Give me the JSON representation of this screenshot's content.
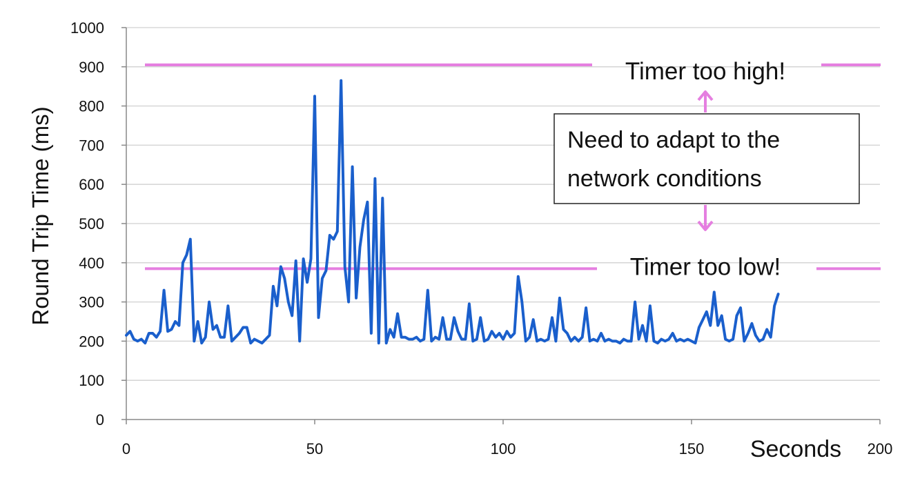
{
  "colors": {
    "series": "#1a5fcc",
    "threshold": "#e57fe0",
    "grid": "#d0d0d0",
    "axis": "#888888"
  },
  "chart_data": {
    "type": "line",
    "title": "",
    "xlabel": "Seconds",
    "ylabel": "Round Trip Time (ms)",
    "xlim": [
      0,
      200
    ],
    "ylim": [
      0,
      1000
    ],
    "x_ticks": [
      0,
      50,
      100,
      150,
      200
    ],
    "y_ticks": [
      0,
      100,
      200,
      300,
      400,
      500,
      600,
      700,
      800,
      900,
      1000
    ],
    "grid": "horizontal",
    "series": [
      {
        "values": [
          [
            0,
            215
          ],
          [
            1,
            225
          ],
          [
            2,
            205
          ],
          [
            3,
            200
          ],
          [
            4,
            205
          ],
          [
            5,
            195
          ],
          [
            6,
            220
          ],
          [
            7,
            220
          ],
          [
            8,
            210
          ],
          [
            9,
            225
          ],
          [
            10,
            330
          ],
          [
            11,
            225
          ],
          [
            12,
            230
          ],
          [
            13,
            250
          ],
          [
            14,
            240
          ],
          [
            15,
            400
          ],
          [
            16,
            420
          ],
          [
            17,
            460
          ],
          [
            18,
            200
          ],
          [
            19,
            250
          ],
          [
            20,
            195
          ],
          [
            21,
            210
          ],
          [
            22,
            300
          ],
          [
            23,
            230
          ],
          [
            24,
            240
          ],
          [
            25,
            210
          ],
          [
            26,
            210
          ],
          [
            27,
            290
          ],
          [
            28,
            200
          ],
          [
            29,
            210
          ],
          [
            30,
            220
          ],
          [
            31,
            235
          ],
          [
            32,
            235
          ],
          [
            33,
            195
          ],
          [
            34,
            205
          ],
          [
            35,
            200
          ],
          [
            36,
            195
          ],
          [
            37,
            205
          ],
          [
            38,
            215
          ],
          [
            39,
            340
          ],
          [
            40,
            290
          ],
          [
            41,
            390
          ],
          [
            42,
            360
          ],
          [
            43,
            300
          ],
          [
            44,
            265
          ],
          [
            45,
            405
          ],
          [
            46,
            200
          ],
          [
            47,
            410
          ],
          [
            48,
            350
          ],
          [
            49,
            410
          ],
          [
            50,
            825
          ],
          [
            51,
            260
          ],
          [
            52,
            360
          ],
          [
            53,
            380
          ],
          [
            54,
            470
          ],
          [
            55,
            460
          ],
          [
            56,
            480
          ],
          [
            57,
            865
          ],
          [
            58,
            390
          ],
          [
            59,
            300
          ],
          [
            60,
            645
          ],
          [
            61,
            310
          ],
          [
            62,
            440
          ],
          [
            63,
            510
          ],
          [
            64,
            555
          ],
          [
            65,
            220
          ],
          [
            66,
            615
          ],
          [
            67,
            195
          ],
          [
            68,
            565
          ],
          [
            69,
            195
          ],
          [
            70,
            230
          ],
          [
            71,
            210
          ],
          [
            72,
            270
          ],
          [
            73,
            210
          ],
          [
            74,
            210
          ],
          [
            75,
            205
          ],
          [
            76,
            205
          ],
          [
            77,
            210
          ],
          [
            78,
            200
          ],
          [
            79,
            205
          ],
          [
            80,
            330
          ],
          [
            81,
            200
          ],
          [
            82,
            210
          ],
          [
            83,
            205
          ],
          [
            84,
            260
          ],
          [
            85,
            205
          ],
          [
            86,
            205
          ],
          [
            87,
            260
          ],
          [
            88,
            225
          ],
          [
            89,
            205
          ],
          [
            90,
            205
          ],
          [
            91,
            295
          ],
          [
            92,
            200
          ],
          [
            93,
            205
          ],
          [
            94,
            260
          ],
          [
            95,
            200
          ],
          [
            96,
            205
          ],
          [
            97,
            225
          ],
          [
            98,
            210
          ],
          [
            99,
            220
          ],
          [
            100,
            205
          ],
          [
            101,
            225
          ],
          [
            102,
            210
          ],
          [
            103,
            220
          ],
          [
            104,
            365
          ],
          [
            105,
            300
          ],
          [
            106,
            200
          ],
          [
            107,
            210
          ],
          [
            108,
            255
          ],
          [
            109,
            200
          ],
          [
            110,
            205
          ],
          [
            111,
            200
          ],
          [
            112,
            205
          ],
          [
            113,
            260
          ],
          [
            114,
            200
          ],
          [
            115,
            310
          ],
          [
            116,
            230
          ],
          [
            117,
            220
          ],
          [
            118,
            200
          ],
          [
            119,
            210
          ],
          [
            120,
            200
          ],
          [
            121,
            210
          ],
          [
            122,
            285
          ],
          [
            123,
            200
          ],
          [
            124,
            205
          ],
          [
            125,
            200
          ],
          [
            126,
            220
          ],
          [
            127,
            200
          ],
          [
            128,
            205
          ],
          [
            129,
            200
          ],
          [
            130,
            200
          ],
          [
            131,
            195
          ],
          [
            132,
            205
          ],
          [
            133,
            200
          ],
          [
            134,
            200
          ],
          [
            135,
            300
          ],
          [
            136,
            205
          ],
          [
            137,
            240
          ],
          [
            138,
            200
          ],
          [
            139,
            290
          ],
          [
            140,
            200
          ],
          [
            141,
            195
          ],
          [
            142,
            205
          ],
          [
            143,
            200
          ],
          [
            144,
            205
          ],
          [
            145,
            220
          ],
          [
            146,
            200
          ],
          [
            147,
            205
          ],
          [
            148,
            200
          ],
          [
            149,
            205
          ],
          [
            150,
            200
          ],
          [
            151,
            195
          ],
          [
            152,
            235
          ],
          [
            153,
            255
          ],
          [
            154,
            275
          ],
          [
            155,
            240
          ],
          [
            156,
            325
          ],
          [
            157,
            240
          ],
          [
            158,
            265
          ],
          [
            159,
            205
          ],
          [
            160,
            200
          ],
          [
            161,
            205
          ],
          [
            162,
            265
          ],
          [
            163,
            285
          ],
          [
            164,
            200
          ],
          [
            165,
            220
          ],
          [
            166,
            245
          ],
          [
            167,
            215
          ],
          [
            168,
            200
          ],
          [
            169,
            205
          ],
          [
            170,
            230
          ],
          [
            171,
            210
          ],
          [
            172,
            290
          ],
          [
            173,
            320
          ]
        ]
      }
    ],
    "thresholds": [
      {
        "value": 905,
        "label": "Timer too high!"
      },
      {
        "value": 385,
        "label": "Timer too low!"
      }
    ],
    "annotation_box": {
      "line1": "Need to adapt to the",
      "line2": "network conditions"
    }
  }
}
